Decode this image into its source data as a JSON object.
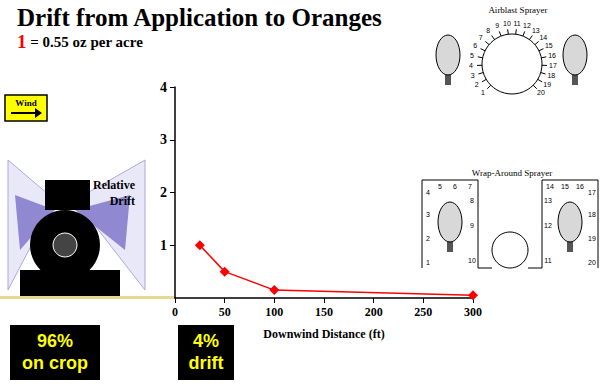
{
  "chart_data": {
    "type": "line",
    "title": "Drift from Application to Oranges",
    "subtitle": "1 = 0.55 oz per acre",
    "x": [
      25,
      50,
      100,
      300
    ],
    "values": [
      1,
      0.5,
      0.15,
      0.05
    ],
    "color": "#ff0000",
    "marker": "diamond",
    "xlim": [
      0,
      300
    ],
    "xticks": [
      0,
      50,
      100,
      150,
      200,
      250,
      300
    ],
    "ylim": [
      0,
      4
    ],
    "yticks": [
      1,
      2,
      3,
      4
    ],
    "x_label": "Downwind Distance (ft)",
    "y_label": "Relative Drift",
    "grid": false,
    "annotations": {
      "wind": "Wind",
      "on_crop": "96% on crop",
      "drift": "4% drift"
    }
  },
  "diagrams": [
    {
      "title": "Airblast Sprayer",
      "nozzles": [
        1,
        2,
        3,
        4,
        5,
        6,
        7,
        8,
        9,
        10,
        11,
        12,
        13,
        14,
        15,
        16,
        17,
        18,
        19,
        20
      ]
    },
    {
      "title": "Wrap-Around Sprayer",
      "nozzles": [
        1,
        2,
        3,
        4,
        5,
        6,
        7,
        8,
        9,
        10,
        11,
        12,
        13,
        14,
        15,
        16,
        17,
        18,
        19,
        20
      ]
    }
  ]
}
